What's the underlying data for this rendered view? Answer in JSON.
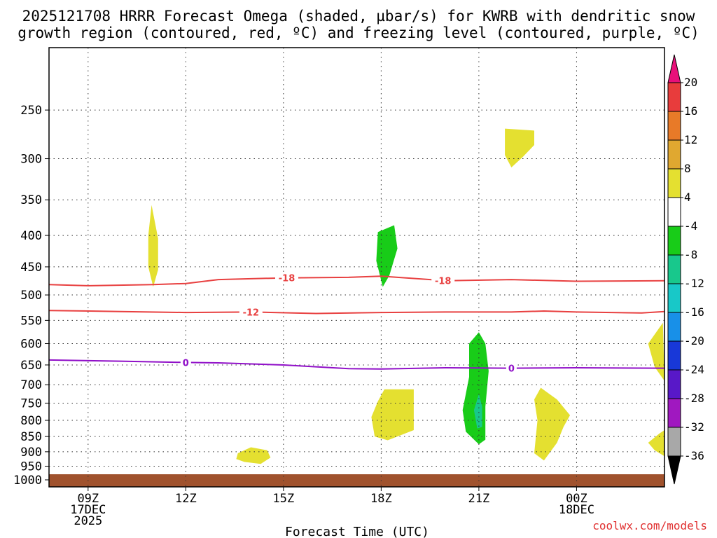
{
  "chart_data": {
    "type": "heatmap",
    "title": [
      "2025121708 HRRR Forecast Omega (shaded, µbar/s) for KWRB with dendritic snow",
      "growth region (contoured, red, ºC) and freezing level (contoured, purple, ºC)"
    ],
    "xlabel": "Forecast Time (UTC)",
    "ylabel": "",
    "xlim_hours": [
      7.8,
      26.7
    ],
    "ylim_hpa": [
      1040,
      200
    ],
    "y_ticks": [
      250,
      300,
      350,
      400,
      450,
      500,
      550,
      600,
      650,
      700,
      750,
      800,
      850,
      900,
      950,
      1000
    ],
    "x_ticks": [
      {
        "hour": 9,
        "lines": [
          "09Z",
          "17DEC",
          "2025"
        ]
      },
      {
        "hour": 12,
        "lines": [
          "12Z"
        ]
      },
      {
        "hour": 15,
        "lines": [
          "15Z"
        ]
      },
      {
        "hour": 18,
        "lines": [
          "18Z"
        ]
      },
      {
        "hour": 21,
        "lines": [
          "21Z"
        ]
      },
      {
        "hour": 24,
        "lines": [
          "00Z",
          "18DEC"
        ]
      }
    ],
    "colorbar": {
      "labels": [
        "20",
        "16",
        "12",
        "8",
        "4",
        "-4",
        "-8",
        "-12",
        "-16",
        "-20",
        "-24",
        "-28",
        "-32",
        "-36"
      ],
      "colors": [
        "#e8107a",
        "#e83c3c",
        "#e87a28",
        "#e0a830",
        "#e4e030",
        "#ffffff",
        "#18cc18",
        "#18c88c",
        "#18c8c8",
        "#1890e8",
        "#1838d8",
        "#5818c8",
        "#a018c0",
        "#a8a8a8",
        "#000000"
      ]
    },
    "omega_regions": [
      {
        "value_range": "4 to 8",
        "color": "#e4e030",
        "points": [
          [
            10.95,
            357
          ],
          [
            11.15,
            405
          ],
          [
            11.15,
            455
          ],
          [
            11.0,
            485
          ],
          [
            10.85,
            450
          ],
          [
            10.85,
            400
          ]
        ]
      },
      {
        "value_range": "4 to 8",
        "color": "#e4e030",
        "points": [
          [
            21.8,
            268
          ],
          [
            22.7,
            270
          ],
          [
            22.7,
            285
          ],
          [
            22.35,
            298
          ],
          [
            22.0,
            310
          ],
          [
            21.8,
            296
          ]
        ]
      },
      {
        "value_range": "4 to 8",
        "color": "#e4e030",
        "points": [
          [
            13.6,
            905
          ],
          [
            14.0,
            885
          ],
          [
            14.5,
            895
          ],
          [
            14.6,
            920
          ],
          [
            14.3,
            942
          ],
          [
            13.8,
            935
          ],
          [
            13.55,
            925
          ]
        ]
      },
      {
        "value_range": "4 to 8",
        "color": "#e4e030",
        "points": [
          [
            18.1,
            712
          ],
          [
            19.0,
            712
          ],
          [
            19.0,
            830
          ],
          [
            18.2,
            862
          ],
          [
            17.8,
            850
          ],
          [
            17.7,
            790
          ],
          [
            17.9,
            745
          ]
        ]
      },
      {
        "value_range": "4 to 8",
        "color": "#e4e030",
        "points": [
          [
            22.9,
            708
          ],
          [
            23.4,
            740
          ],
          [
            23.8,
            785
          ],
          [
            23.6,
            820
          ],
          [
            23.4,
            870
          ],
          [
            23.0,
            930
          ],
          [
            22.7,
            905
          ],
          [
            22.8,
            800
          ],
          [
            22.7,
            740
          ]
        ]
      },
      {
        "value_range": "4 to 8",
        "color": "#e4e030",
        "points": [
          [
            26.2,
            600
          ],
          [
            26.65,
            555
          ],
          [
            26.7,
            690
          ],
          [
            26.4,
            655
          ]
        ]
      },
      {
        "value_range": "4 to 8",
        "color": "#e4e030",
        "points": [
          [
            26.2,
            870
          ],
          [
            26.55,
            840
          ],
          [
            26.7,
            830
          ],
          [
            26.7,
            915
          ],
          [
            26.4,
            895
          ]
        ]
      },
      {
        "value_range": "-4 to -8",
        "color": "#18cc18",
        "points": [
          [
            17.9,
            395
          ],
          [
            18.4,
            385
          ],
          [
            18.5,
            420
          ],
          [
            18.25,
            465
          ],
          [
            18.05,
            485
          ],
          [
            17.85,
            440
          ]
        ]
      },
      {
        "value_range": "-4 to -8",
        "color": "#18cc18",
        "points": [
          [
            20.7,
            600
          ],
          [
            21.0,
            575
          ],
          [
            21.2,
            600
          ],
          [
            21.3,
            665
          ],
          [
            21.2,
            760
          ],
          [
            21.2,
            860
          ],
          [
            21.0,
            875
          ],
          [
            20.6,
            835
          ],
          [
            20.5,
            770
          ],
          [
            20.7,
            680
          ]
        ]
      },
      {
        "value_range": "-8 to -12",
        "color": "#18c88c",
        "points": [
          [
            21.0,
            725
          ],
          [
            21.1,
            760
          ],
          [
            21.1,
            820
          ],
          [
            20.95,
            825
          ],
          [
            20.85,
            770
          ]
        ]
      }
    ],
    "contours": [
      {
        "name": "-18 ºC isotherm",
        "color": "#e84040",
        "label": "-18",
        "label_hour": 15.1,
        "label2_hour": 19.9,
        "points": [
          [
            7.8,
            481
          ],
          [
            9,
            483
          ],
          [
            11,
            481
          ],
          [
            12,
            479
          ],
          [
            13,
            472
          ],
          [
            15,
            469
          ],
          [
            17,
            468
          ],
          [
            18,
            466
          ],
          [
            20,
            474
          ],
          [
            22,
            472
          ],
          [
            24,
            475
          ],
          [
            26.7,
            474
          ]
        ]
      },
      {
        "name": "-12 ºC isotherm",
        "color": "#e84040",
        "label": "-12",
        "label_hour": 14.0,
        "points": [
          [
            7.8,
            530
          ],
          [
            10,
            532
          ],
          [
            12,
            534
          ],
          [
            14,
            533
          ],
          [
            16,
            536
          ],
          [
            18,
            534
          ],
          [
            20,
            533
          ],
          [
            22,
            533
          ],
          [
            23,
            531
          ],
          [
            24,
            533
          ],
          [
            26,
            535
          ],
          [
            26.7,
            532
          ]
        ]
      },
      {
        "name": "0 ºC freezing level",
        "color": "#9010c8",
        "label": "0",
        "label_hour": 12.0,
        "label2_hour": 22.0,
        "points": [
          [
            7.8,
            638
          ],
          [
            10,
            641
          ],
          [
            12,
            644
          ],
          [
            13,
            645
          ],
          [
            15,
            650
          ],
          [
            17,
            659
          ],
          [
            18,
            660
          ],
          [
            20,
            657
          ],
          [
            22,
            658
          ],
          [
            24,
            657
          ],
          [
            26.7,
            658
          ]
        ]
      }
    ],
    "ground": {
      "color": "#a0522d",
      "top_hpa": 1000
    }
  },
  "credit": "coolwx.com/models"
}
